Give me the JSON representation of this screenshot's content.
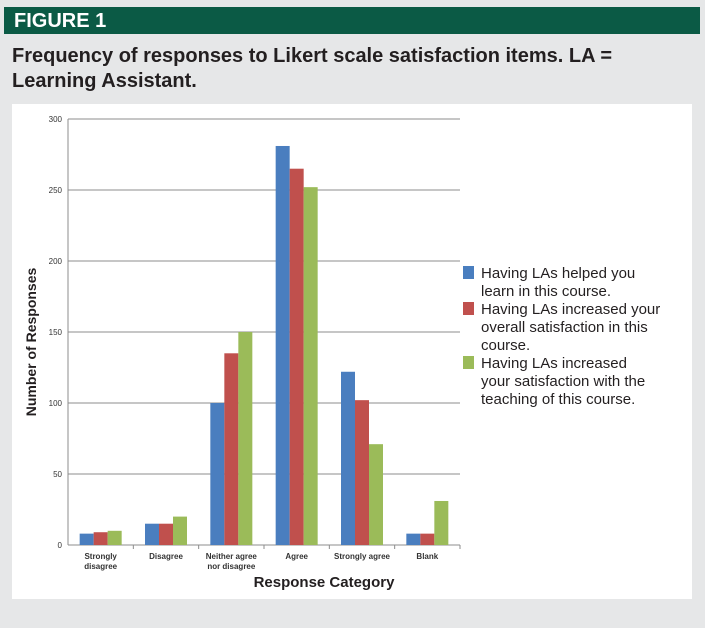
{
  "header": {
    "label": "FIGURE 1"
  },
  "title": "Frequency of responses to Likert scale satisfaction items. LA = Learning Assistant.",
  "chart_data": {
    "type": "bar",
    "title": "Frequency of responses to Likert scale satisfaction items. LA = Learning Assistant.",
    "xlabel": "Response Category",
    "ylabel": "Number of Responses",
    "ylim": [
      0,
      300
    ],
    "yticks": [
      0,
      50,
      100,
      150,
      200,
      250,
      300
    ],
    "grid": true,
    "legend_position": "right",
    "categories": [
      "Strongly disagree",
      "Disagree",
      "Neither agree nor disagree",
      "Agree",
      "Strongly agree",
      "Blank"
    ],
    "category_lines": [
      [
        "Strongly",
        "disagree"
      ],
      [
        "Disagree"
      ],
      [
        "Neither agree",
        "nor disagree"
      ],
      [
        "Agree"
      ],
      [
        "Strongly agree"
      ],
      [
        "Blank"
      ]
    ],
    "series": [
      {
        "name": "Having LAs helped you learn in this course.",
        "legend_lines": [
          "Having LAs helped you",
          "learn in this course."
        ],
        "color": "#4a7ebf",
        "values": [
          8,
          15,
          100,
          281,
          122,
          8
        ]
      },
      {
        "name": "Having LAs increased your overall satisfaction in this course.",
        "legend_lines": [
          "Having LAs increased your",
          "overall satisfaction in this",
          "course."
        ],
        "color": "#c0504d",
        "values": [
          9,
          15,
          135,
          265,
          102,
          8
        ]
      },
      {
        "name": "Having LAs increased your satisfaction with the teaching of this course.",
        "legend_lines": [
          "Having LAs increased",
          "your satisfaction with the",
          "teaching of this course."
        ],
        "color": "#9bbb59",
        "values": [
          10,
          20,
          150,
          252,
          71,
          31
        ]
      }
    ]
  }
}
